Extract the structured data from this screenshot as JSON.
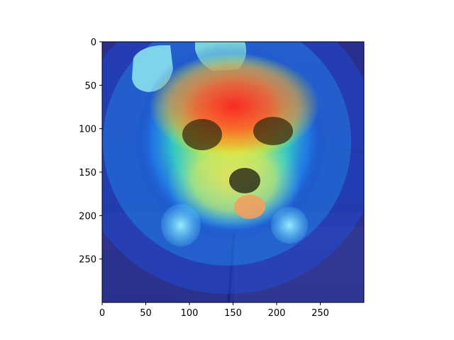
{
  "figure": {
    "image_description_icon": "dog-heatmap-overlay-image",
    "colormap": [
      "#00007f",
      "#0000ff",
      "#00bfff",
      "#7fff7f",
      "#ffff00",
      "#ff7f00",
      "#ff0000"
    ]
  },
  "axes": {
    "xlim": [
      0,
      300
    ],
    "ylim": [
      300,
      0
    ],
    "x_ticks": [
      {
        "value": 0,
        "label": "0"
      },
      {
        "value": 50,
        "label": "50"
      },
      {
        "value": 100,
        "label": "100"
      },
      {
        "value": 150,
        "label": "150"
      },
      {
        "value": 200,
        "label": "200"
      },
      {
        "value": 250,
        "label": "250"
      }
    ],
    "y_ticks": [
      {
        "value": 0,
        "label": "0"
      },
      {
        "value": 50,
        "label": "50"
      },
      {
        "value": 100,
        "label": "100"
      },
      {
        "value": 150,
        "label": "150"
      },
      {
        "value": 200,
        "label": "200"
      },
      {
        "value": 250,
        "label": "250"
      }
    ]
  }
}
